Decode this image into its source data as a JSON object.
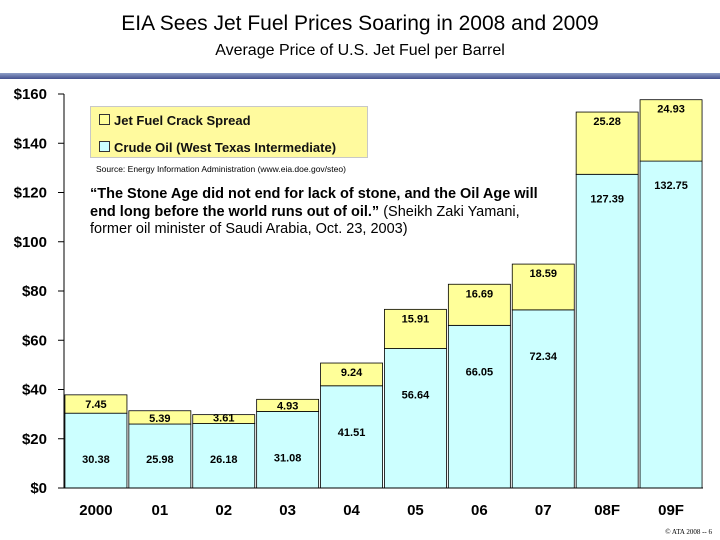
{
  "title": "EIA Sees Jet Fuel Prices Soaring in 2008 and 2009",
  "subtitle": "Average Price of U.S. Jet Fuel per Barrel",
  "legend": {
    "crack": "Jet Fuel Crack Spread",
    "crude": "Crude Oil (West Texas Intermediate)"
  },
  "source": "Source: Energy Information Administration (www.eia.doe.gov/steo)",
  "quote": {
    "text": "“The Stone Age did not end for lack of stone, and the Oil Age will end long before the world runs out of oil.”",
    "attribution": " (Sheikh Zaki Yamani, former oil minister of Saudi Arabia, Oct. 23, 2003)"
  },
  "footer": "© ATA 2008 -- 6",
  "colors": {
    "crude": "#ccffff",
    "crack": "#ffff99",
    "title_rule": "#43508e"
  },
  "chart_data": {
    "type": "bar",
    "stacked": true,
    "categories": [
      "2000",
      "01",
      "02",
      "03",
      "04",
      "05",
      "06",
      "07",
      "08F",
      "09F"
    ],
    "series": [
      {
        "name": "Crude Oil (West Texas Intermediate)",
        "color": "#ccffff",
        "values": [
          30.38,
          25.98,
          26.18,
          31.08,
          41.51,
          56.64,
          66.05,
          72.34,
          127.39,
          132.75
        ]
      },
      {
        "name": "Jet Fuel Crack Spread",
        "color": "#ffff99",
        "values": [
          7.45,
          5.39,
          3.61,
          4.93,
          9.24,
          15.91,
          16.69,
          18.59,
          25.28,
          24.93
        ]
      }
    ],
    "yticks": [
      "$0",
      "$20",
      "$40",
      "$60",
      "$80",
      "$100",
      "$120",
      "$140",
      "$160"
    ],
    "ylim": [
      0,
      160
    ],
    "grid": false
  }
}
